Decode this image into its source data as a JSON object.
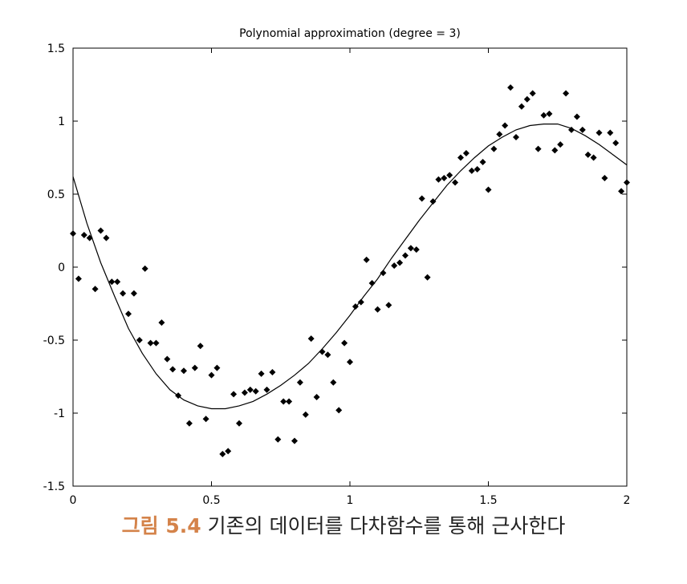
{
  "chart_data": {
    "type": "scatter",
    "title": "Polynomial approximation (degree = 3)",
    "xlim": [
      0,
      2
    ],
    "ylim": [
      -1.5,
      1.5
    ],
    "xticks": [
      "0",
      "0.5",
      "1",
      "1.5",
      "2"
    ],
    "yticks": [
      "1.5",
      "1",
      "0.5",
      "0",
      "-0.5",
      "-1",
      "-1.5"
    ],
    "grid": false,
    "series": [
      {
        "kind": "points",
        "marker": "diamond",
        "x": [
          0.0,
          0.02,
          0.04,
          0.06,
          0.08,
          0.1,
          0.12,
          0.14,
          0.16,
          0.18,
          0.2,
          0.22,
          0.24,
          0.26,
          0.28,
          0.3,
          0.32,
          0.34,
          0.36,
          0.38,
          0.4,
          0.42,
          0.44,
          0.46,
          0.48,
          0.5,
          0.52,
          0.54,
          0.56,
          0.58,
          0.6,
          0.62,
          0.64,
          0.66,
          0.68,
          0.7,
          0.72,
          0.74,
          0.76,
          0.78,
          0.8,
          0.82,
          0.84,
          0.86,
          0.88,
          0.9,
          0.92,
          0.94,
          0.96,
          0.98,
          1.0,
          1.02,
          1.04,
          1.06,
          1.08,
          1.1,
          1.12,
          1.14,
          1.16,
          1.18,
          1.2,
          1.22,
          1.24,
          1.26,
          1.28,
          1.3,
          1.32,
          1.34,
          1.36,
          1.38,
          1.4,
          1.42,
          1.44,
          1.46,
          1.48,
          1.5,
          1.52,
          1.54,
          1.56,
          1.58,
          1.6,
          1.62,
          1.64,
          1.66,
          1.68,
          1.7,
          1.72,
          1.74,
          1.76,
          1.78,
          1.8,
          1.82,
          1.84,
          1.86,
          1.88,
          1.9,
          1.92,
          1.94,
          1.96,
          1.98,
          2.0
        ],
        "y": [
          0.23,
          -0.08,
          0.22,
          0.2,
          -0.15,
          0.25,
          0.2,
          -0.1,
          -0.1,
          -0.18,
          -0.32,
          -0.18,
          -0.5,
          -0.01,
          -0.52,
          -0.52,
          -0.38,
          -0.63,
          -0.7,
          -0.88,
          -0.71,
          -1.07,
          -0.69,
          -0.54,
          -1.04,
          -0.74,
          -0.69,
          -1.28,
          -1.26,
          -0.87,
          -1.07,
          -0.86,
          -0.84,
          -0.85,
          -0.73,
          -0.84,
          -0.72,
          -1.18,
          -0.92,
          -0.92,
          -1.19,
          -0.79,
          -1.01,
          -0.49,
          -0.89,
          -0.58,
          -0.6,
          -0.79,
          -0.98,
          -0.52,
          -0.65,
          -0.27,
          -0.24,
          0.05,
          -0.11,
          -0.29,
          -0.04,
          -0.26,
          0.01,
          0.03,
          0.08,
          0.13,
          0.12,
          0.47,
          -0.07,
          0.45,
          0.6,
          0.61,
          0.63,
          0.58,
          0.75,
          0.78,
          0.66,
          0.67,
          0.72,
          0.53,
          0.81,
          0.91,
          0.97,
          1.23,
          0.89,
          1.1,
          1.15,
          1.19,
          0.81,
          1.04,
          1.05,
          0.8,
          0.84,
          1.19,
          0.94,
          1.03,
          0.94,
          0.77,
          0.75,
          0.92,
          0.61,
          0.92,
          0.85,
          0.52,
          0.58
        ]
      },
      {
        "kind": "line",
        "x": [
          0.0,
          0.05,
          0.1,
          0.15,
          0.2,
          0.25,
          0.3,
          0.35,
          0.4,
          0.45,
          0.5,
          0.55,
          0.6,
          0.65,
          0.7,
          0.75,
          0.8,
          0.85,
          0.9,
          0.95,
          1.0,
          1.05,
          1.1,
          1.15,
          1.2,
          1.25,
          1.3,
          1.35,
          1.4,
          1.45,
          1.5,
          1.55,
          1.6,
          1.65,
          1.7,
          1.75,
          1.8,
          1.85,
          1.9,
          1.95,
          2.0
        ],
        "y": [
          0.62,
          0.3,
          0.03,
          -0.2,
          -0.42,
          -0.59,
          -0.73,
          -0.84,
          -0.91,
          -0.95,
          -0.97,
          -0.97,
          -0.95,
          -0.92,
          -0.87,
          -0.81,
          -0.74,
          -0.66,
          -0.56,
          -0.45,
          -0.33,
          -0.2,
          -0.08,
          0.06,
          0.19,
          0.32,
          0.44,
          0.56,
          0.66,
          0.75,
          0.83,
          0.89,
          0.94,
          0.97,
          0.98,
          0.98,
          0.95,
          0.9,
          0.84,
          0.77,
          0.7
        ]
      }
    ]
  },
  "caption": {
    "label": "그림 5.4",
    "text": "기존의 데이터를 다차함수를 통해 근사한다"
  }
}
